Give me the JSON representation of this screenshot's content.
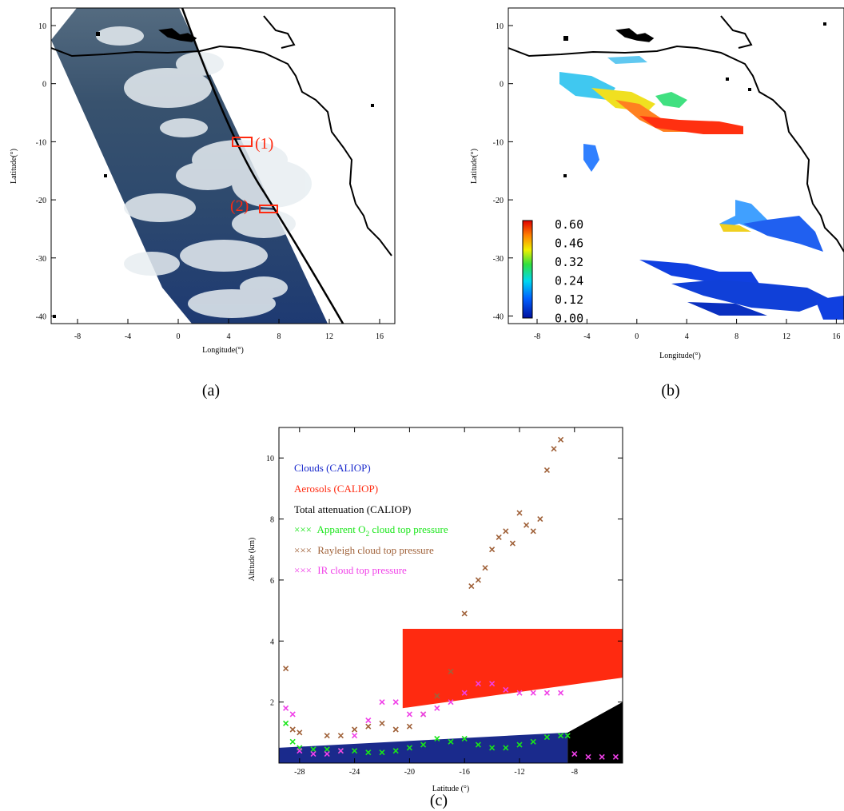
{
  "colors": {
    "cloud": "#1a2a8c",
    "aerosol": "#ff2a10",
    "attenuation": "#000000",
    "o2": "#19e619",
    "rayleigh": "#a0623a",
    "ir": "#f040e8",
    "track": "#000000",
    "box": "#ff2a10"
  },
  "panel_a": {
    "caption": "(a)",
    "xlabel": "Longitude(°)",
    "ylabel": "Latitude(°)",
    "xticks": [
      "-8",
      "-4",
      "0",
      "4",
      "8",
      "12",
      "16"
    ],
    "yticks": [
      "10",
      "0",
      "-10",
      "-20",
      "-30",
      "-40"
    ],
    "box1_label": "(1)",
    "box2_label": "(2)"
  },
  "panel_b": {
    "caption": "(b)",
    "xlabel": "Longitude(°)",
    "ylabel": "Latitude(°)",
    "xticks": [
      "-8",
      "-4",
      "0",
      "4",
      "8",
      "12",
      "16"
    ],
    "yticks": [
      "10",
      "0",
      "-10",
      "-20",
      "-30",
      "-40"
    ],
    "colorbar_labels": [
      "0.60",
      "0.46",
      "0.32",
      "0.24",
      "0.12",
      "0.00"
    ]
  },
  "panel_c": {
    "caption": "(c)",
    "xlabel": "Latitude (°)",
    "ylabel": "Altitude (km)",
    "xticks": [
      "-28",
      "-24",
      "-20",
      "-16",
      "-12",
      "-8"
    ],
    "yticks": [
      "10",
      "8",
      "6",
      "4",
      "2"
    ],
    "legend": {
      "clouds": "Clouds (CALIOP)",
      "aerosols": "Aerosols (CALIOP)",
      "attenuation": "Total attenuation (CALIOP)",
      "marker": "×××",
      "o2_pre": "Apparent O",
      "o2_sub": "2",
      "o2_post": " cloud top pressure",
      "rayleigh": "Rayleigh cloud top pressure",
      "ir": "IR cloud top pressure"
    }
  },
  "chart_data": {
    "type": "scatter",
    "xlabel": "Latitude (°)",
    "ylabel": "Altitude (km)",
    "xlim": [
      -29.5,
      -4.5
    ],
    "ylim": [
      0,
      11
    ],
    "series": [
      {
        "name": "Apparent O2 cloud top pressure",
        "marker": "x",
        "x": [
          -29,
          -28.5,
          -28,
          -27,
          -26,
          -25,
          -24,
          -23,
          -22,
          -21,
          -20,
          -19,
          -18,
          -17,
          -16,
          -15,
          -14,
          -13,
          -12,
          -11,
          -10,
          -9,
          -8.5
        ],
        "y": [
          1.3,
          0.7,
          0.5,
          0.45,
          0.45,
          0.4,
          0.4,
          0.35,
          0.35,
          0.4,
          0.5,
          0.6,
          0.8,
          0.7,
          0.8,
          0.6,
          0.5,
          0.5,
          0.6,
          0.7,
          0.85,
          0.9,
          0.9
        ]
      },
      {
        "name": "Rayleigh cloud top pressure",
        "marker": "x",
        "x": [
          -29,
          -28.5,
          -28,
          -26,
          -25,
          -24,
          -23,
          -22,
          -21,
          -20,
          -19,
          -18,
          -17,
          -16,
          -15.5,
          -15,
          -14.5,
          -14,
          -13.5,
          -13,
          -12.5,
          -12,
          -11.5,
          -11,
          -10.5,
          -10,
          -9.5,
          -9
        ],
        "y": [
          3.1,
          1.1,
          1.0,
          0.9,
          0.9,
          1.1,
          1.2,
          1.3,
          1.1,
          1.2,
          1.6,
          2.2,
          3.0,
          4.9,
          5.8,
          6.0,
          6.4,
          7.0,
          7.4,
          7.6,
          7.2,
          8.2,
          7.8,
          7.6,
          8.0,
          9.6,
          10.3,
          10.6
        ]
      },
      {
        "name": "IR cloud top pressure",
        "marker": "x",
        "x": [
          -29,
          -28.5,
          -28,
          -27,
          -26,
          -25,
          -24,
          -23,
          -22,
          -21,
          -20,
          -19,
          -18,
          -17,
          -16,
          -15,
          -14,
          -13,
          -12,
          -11,
          -10,
          -9,
          -8,
          -7,
          -6,
          -5
        ],
        "y": [
          1.8,
          1.6,
          0.4,
          0.3,
          0.3,
          0.4,
          0.9,
          1.4,
          2.0,
          2.0,
          1.6,
          1.6,
          1.8,
          2.0,
          2.3,
          2.6,
          2.6,
          2.4,
          2.3,
          2.3,
          2.3,
          2.3,
          0.3,
          0.2,
          0.2,
          0.2
        ]
      }
    ],
    "layers": [
      {
        "name": "Clouds (CALIOP)",
        "lat_range": [
          -29.5,
          -8.5
        ],
        "top_km": [
          0.5,
          1.0
        ]
      },
      {
        "name": "Aerosols (CALIOP)",
        "lat_range": [
          -20.5,
          -4.5
        ],
        "top_km": 4.4,
        "base_km": [
          1.8,
          2.8
        ]
      },
      {
        "name": "Total attenuation (CALIOP)",
        "lat_range": [
          -8.5,
          -4.5
        ],
        "top_km": [
          1.0,
          2.0
        ]
      }
    ]
  }
}
